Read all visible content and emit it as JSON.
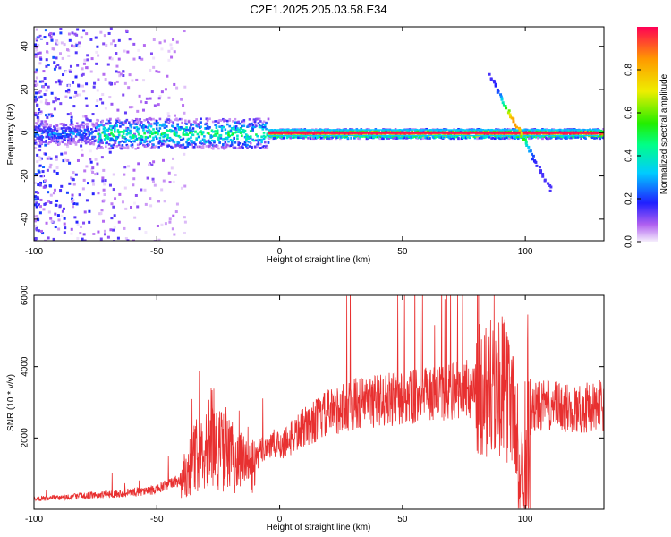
{
  "title": "C2E1.2025.205.03.58.E34",
  "chart_data": [
    {
      "type": "heatmap",
      "xlabel": "Height of straight line (km)",
      "ylabel": "Frequency (Hz)",
      "xlim": [
        -100,
        132
      ],
      "ylim": [
        -50,
        49
      ],
      "xticks": [
        -100,
        -50,
        0,
        50,
        100
      ],
      "yticks": [
        -40,
        -20,
        0,
        20,
        40
      ],
      "colorbar": {
        "label": "Normalized spectral amplitude",
        "range": [
          0,
          1
        ],
        "ticks": [
          0.0,
          0.2,
          0.4,
          0.6,
          0.8
        ],
        "tick_labels": [
          "0.0",
          "0.2",
          "0.4",
          "0.6",
          "0.8"
        ],
        "colormap": "rainbow"
      },
      "features": {
        "central_band_frequency_hz": 0,
        "high_amplitude_band_km": [
          -5,
          130
        ],
        "noise_region_km": [
          -100,
          -38
        ],
        "diagonal_feature": {
          "start_km": 85,
          "start_hz": 27,
          "end_km": 110,
          "end_hz": -26
        }
      }
    },
    {
      "type": "line",
      "xlabel": "Height of straight line (km)",
      "ylabel": "SNR (10 * v/v)",
      "xlim": [
        -100,
        132
      ],
      "ylim": [
        0,
        6000
      ],
      "xticks": [
        -100,
        -50,
        0,
        50,
        100
      ],
      "yticks": [
        2000,
        4000,
        6000
      ],
      "color": "#e83030",
      "envelope": [
        [
          -100,
          300
        ],
        [
          -90,
          320
        ],
        [
          -80,
          380
        ],
        [
          -70,
          420
        ],
        [
          -60,
          480
        ],
        [
          -50,
          550
        ],
        [
          -40,
          850
        ],
        [
          -35,
          1400
        ],
        [
          -30,
          1900
        ],
        [
          -25,
          1700
        ],
        [
          -20,
          1500
        ],
        [
          -15,
          1300
        ],
        [
          -12,
          1100
        ],
        [
          -8,
          1600
        ],
        [
          -5,
          1800
        ],
        [
          0,
          1800
        ],
        [
          5,
          2000
        ],
        [
          10,
          2300
        ],
        [
          20,
          2700
        ],
        [
          30,
          2950
        ],
        [
          40,
          3050
        ],
        [
          50,
          3100
        ],
        [
          60,
          3200
        ],
        [
          70,
          3300
        ],
        [
          80,
          3400
        ],
        [
          85,
          3450
        ],
        [
          90,
          3500
        ],
        [
          95,
          3000
        ],
        [
          98,
          500
        ],
        [
          100,
          2500
        ],
        [
          105,
          2900
        ],
        [
          110,
          2900
        ],
        [
          120,
          2800
        ],
        [
          130,
          2900
        ]
      ]
    }
  ]
}
